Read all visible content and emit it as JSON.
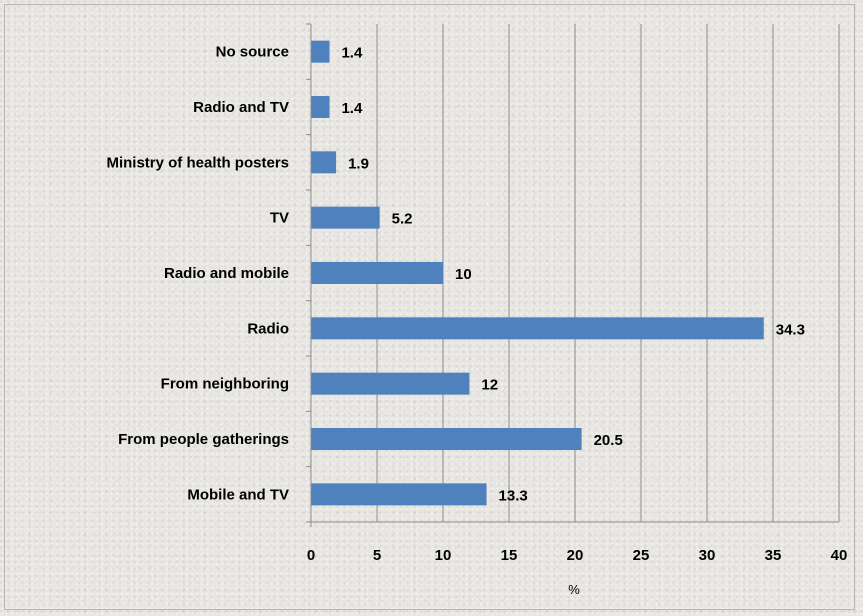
{
  "chart_data": {
    "type": "bar",
    "orientation": "horizontal",
    "categories": [
      "No source",
      "Radio and TV",
      "Ministry of health posters",
      "TV",
      "Radio and mobile",
      "Radio",
      "From neighboring",
      "From people gatherings",
      "Mobile  and TV"
    ],
    "values": [
      1.4,
      1.4,
      1.9,
      5.2,
      10,
      34.3,
      12,
      20.5,
      13.3
    ],
    "value_labels": [
      "1.4",
      "1.4",
      "1.9",
      "5.2",
      "10",
      "34.3",
      "12",
      "20.5",
      "13.3"
    ],
    "xlabel": "%",
    "xlim": [
      0,
      40
    ],
    "xticks": [
      0,
      5,
      10,
      15,
      20,
      25,
      30,
      35,
      40
    ],
    "grid": "vertical",
    "bar_color": "#4f81bd",
    "grid_color": "#8c8c8c"
  }
}
